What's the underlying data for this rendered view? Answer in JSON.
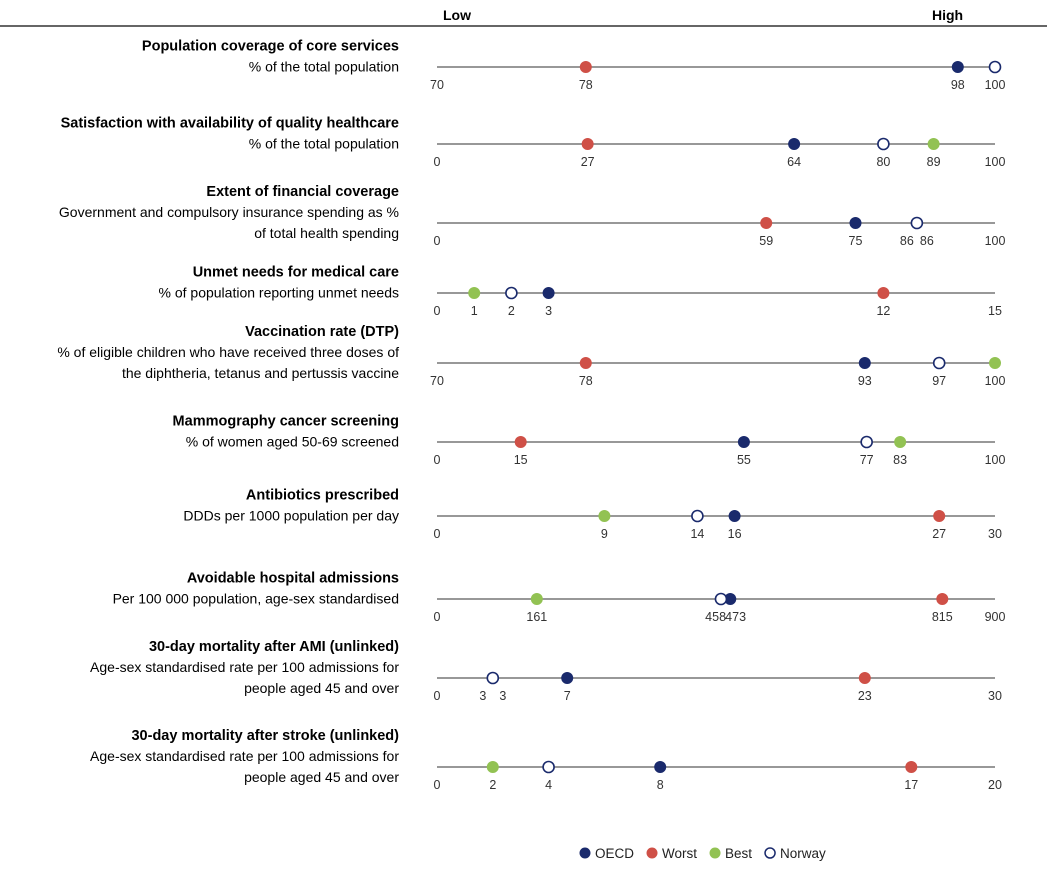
{
  "header": {
    "low": "Low",
    "high": "High"
  },
  "colors": {
    "OECD": "#1a2a6c",
    "Worst": "#cf5047",
    "Best": "#92c253",
    "Norway": "#ffffff",
    "Norway_stroke": "#1a2a6c",
    "axis": "#777777"
  },
  "legend": [
    {
      "key": "OECD",
      "label": "OECD"
    },
    {
      "key": "Worst",
      "label": "Worst"
    },
    {
      "key": "Best",
      "label": "Best"
    },
    {
      "key": "Norway",
      "label": "Norway"
    }
  ],
  "chart_data": {
    "type": "scatter",
    "series_names": [
      "OECD",
      "Worst",
      "Best",
      "Norway"
    ],
    "indicators": [
      {
        "title": "Population coverage of core services",
        "subtitle": [
          "% of the total population"
        ],
        "min": 70,
        "max": 100,
        "min_label": "70",
        "max_label": "100",
        "points": [
          {
            "series": "Worst",
            "value": 78,
            "label": "78"
          },
          {
            "series": "OECD",
            "value": 98,
            "label": "98"
          },
          {
            "series": "Norway",
            "value": 100,
            "label": ""
          }
        ]
      },
      {
        "title": "Satisfaction with availability of quality healthcare",
        "subtitle": [
          "% of the total population"
        ],
        "min": 0,
        "max": 100,
        "min_label": "0",
        "max_label": "100",
        "points": [
          {
            "series": "Worst",
            "value": 27,
            "label": "27"
          },
          {
            "series": "OECD",
            "value": 64,
            "label": "64"
          },
          {
            "series": "Norway",
            "value": 80,
            "label": "80"
          },
          {
            "series": "Best",
            "value": 89,
            "label": "89"
          }
        ]
      },
      {
        "title": "Extent of financial coverage",
        "subtitle": [
          "Government and compulsory insurance spending as %",
          "of total health spending"
        ],
        "min": 0,
        "max": 100,
        "min_label": "0",
        "max_label": "100",
        "points": [
          {
            "series": "Worst",
            "value": 59,
            "label": "59"
          },
          {
            "series": "OECD",
            "value": 75,
            "label": "75"
          },
          {
            "series": "Best",
            "value": 86,
            "label": "86"
          },
          {
            "series": "Norway",
            "value": 86,
            "label": "86"
          }
        ]
      },
      {
        "title": "Unmet needs for medical care",
        "subtitle": [
          "% of population reporting unmet needs"
        ],
        "min": 0,
        "max": 15,
        "min_label": "0",
        "max_label": "15",
        "points": [
          {
            "series": "Best",
            "value": 1,
            "label": "1"
          },
          {
            "series": "Norway",
            "value": 2,
            "label": "2"
          },
          {
            "series": "OECD",
            "value": 3,
            "label": "3"
          },
          {
            "series": "Worst",
            "value": 12,
            "label": "12"
          }
        ]
      },
      {
        "title": "Vaccination rate (DTP)",
        "subtitle": [
          "% of eligible children who have received three doses of",
          "the diphtheria, tetanus and pertussis vaccine"
        ],
        "min": 70,
        "max": 100,
        "min_label": "70",
        "max_label": "",
        "points": [
          {
            "series": "Worst",
            "value": 78,
            "label": "78"
          },
          {
            "series": "OECD",
            "value": 93,
            "label": "93"
          },
          {
            "series": "Norway",
            "value": 97,
            "label": "97"
          },
          {
            "series": "Best",
            "value": 100,
            "label": "100"
          }
        ]
      },
      {
        "title": "Mammography cancer screening",
        "subtitle": [
          "% of women aged 50-69 screened"
        ],
        "min": 0,
        "max": 100,
        "min_label": "0",
        "max_label": "100",
        "points": [
          {
            "series": "Worst",
            "value": 15,
            "label": "15"
          },
          {
            "series": "OECD",
            "value": 55,
            "label": "55"
          },
          {
            "series": "Norway",
            "value": 77,
            "label": "77"
          },
          {
            "series": "Best",
            "value": 83,
            "label": "83"
          }
        ]
      },
      {
        "title": "Antibiotics prescribed",
        "subtitle": [
          "DDDs per 1000 population per day"
        ],
        "min": 0,
        "max": 30,
        "min_label": "0",
        "max_label": "30",
        "points": [
          {
            "series": "Best",
            "value": 9,
            "label": "9"
          },
          {
            "series": "Norway",
            "value": 14,
            "label": "14"
          },
          {
            "series": "OECD",
            "value": 16,
            "label": "16"
          },
          {
            "series": "Worst",
            "value": 27,
            "label": "27"
          }
        ]
      },
      {
        "title": "Avoidable hospital admissions",
        "subtitle": [
          "Per 100 000 population, age-sex standardised"
        ],
        "min": 0,
        "max": 900,
        "min_label": "0",
        "max_label": "900",
        "points": [
          {
            "series": "Best",
            "value": 161,
            "label": "161"
          },
          {
            "series": "Norway",
            "value": 458,
            "label": "458"
          },
          {
            "series": "OECD",
            "value": 473,
            "label": "473"
          },
          {
            "series": "Worst",
            "value": 815,
            "label": "815"
          }
        ]
      },
      {
        "title": "30-day mortality after AMI (unlinked)",
        "subtitle": [
          "Age-sex standardised rate per 100 admissions for",
          "people aged 45 and over"
        ],
        "min": 0,
        "max": 30,
        "min_label": "0",
        "max_label": "30",
        "points": [
          {
            "series": "Best",
            "value": 3,
            "label": "3"
          },
          {
            "series": "Norway",
            "value": 3,
            "label": "3"
          },
          {
            "series": "OECD",
            "value": 7,
            "label": "7"
          },
          {
            "series": "Worst",
            "value": 23,
            "label": "23"
          }
        ]
      },
      {
        "title": "30-day mortality after stroke (unlinked)",
        "subtitle": [
          "Age-sex standardised rate per 100 admissions for",
          "people aged 45 and over"
        ],
        "min": 0,
        "max": 20,
        "min_label": "0",
        "max_label": "20",
        "points": [
          {
            "series": "Best",
            "value": 2,
            "label": "2"
          },
          {
            "series": "Norway",
            "value": 4,
            "label": "4"
          },
          {
            "series": "OECD",
            "value": 8,
            "label": "8"
          },
          {
            "series": "Worst",
            "value": 17,
            "label": "17"
          }
        ]
      }
    ]
  }
}
